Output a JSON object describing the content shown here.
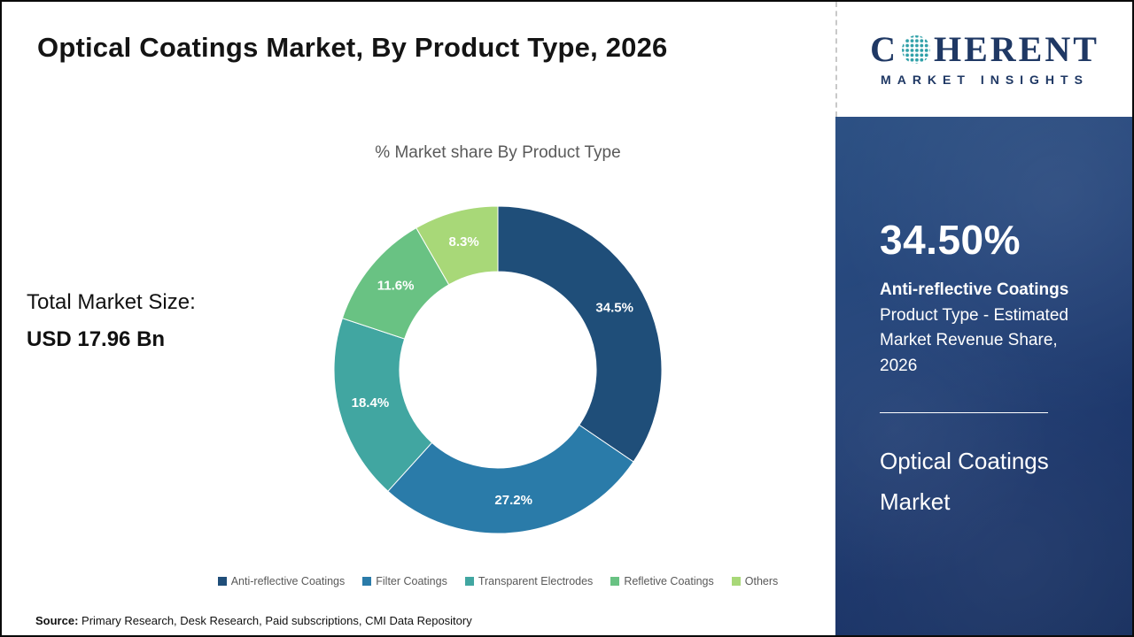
{
  "page": {
    "title": "Optical Coatings Market, By Product Type, 2026"
  },
  "left": {
    "total_label": "Total Market Size:",
    "total_value": "USD 17.96 Bn"
  },
  "chart_data": {
    "type": "pie",
    "subtype": "donut",
    "title": "% Market share By Product Type",
    "categories": [
      "Anti-reflective Coatings",
      "Filter Coatings",
      "Transparent Electrodes",
      "Refletive Coatings",
      "Others"
    ],
    "values": [
      34.5,
      27.2,
      18.4,
      11.6,
      8.3
    ],
    "data_labels": [
      "34.5%",
      "27.2%",
      "18.4%",
      "11.6%",
      "8.3%"
    ],
    "colors": [
      "#1f4e79",
      "#2a7ba9",
      "#41a6a1",
      "#69c283",
      "#a8d878"
    ],
    "start_angle_deg": 0,
    "direction": "clockwise",
    "legend_position": "bottom"
  },
  "sidebar": {
    "stat_value": "34.50%",
    "stat_name": "Anti-reflective Coatings",
    "stat_desc": "Product Type - Estimated Market Revenue Share, 2026",
    "market_name": "Optical Coatings Market",
    "background_color": "#1f3b6e"
  },
  "logo": {
    "prefix": "C",
    "suffix": "HERENT",
    "tagline": "MARKET INSIGHTS",
    "brand_color": "#1f3864",
    "globe_icon": "dotted-globe-icon"
  },
  "source": {
    "label": "Source:",
    "text": " Primary Research, Desk Research, Paid subscriptions, CMI Data Repository"
  }
}
